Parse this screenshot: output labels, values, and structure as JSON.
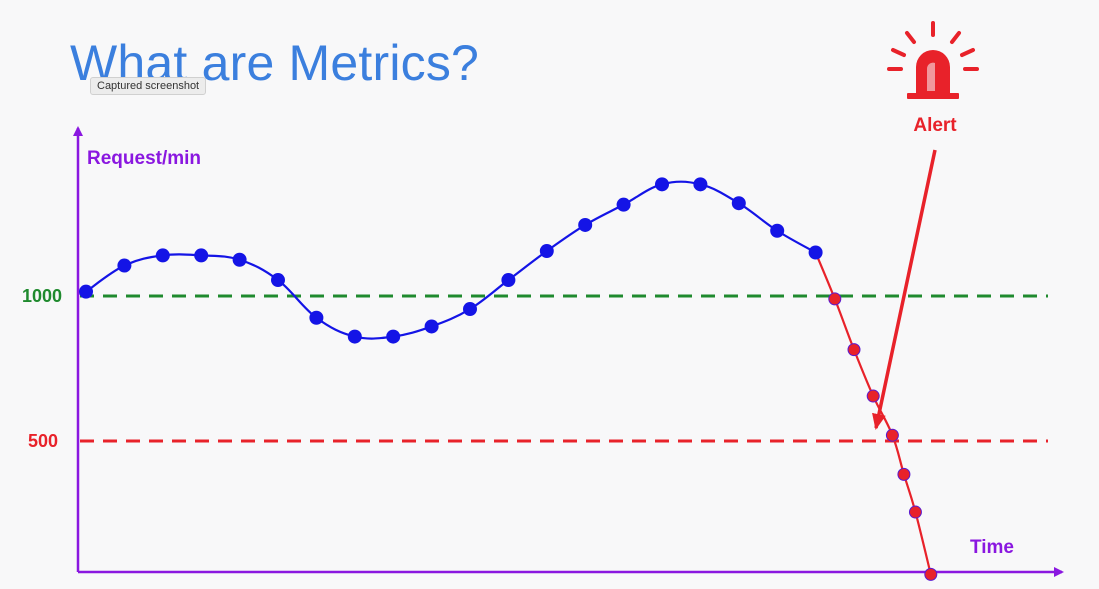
{
  "title": "What are Metrics?",
  "tooltip": "Captured screenshot",
  "alert": {
    "label": "Alert",
    "icon": "alarm-siren-icon",
    "color": "#e8222a"
  },
  "colors": {
    "axis": "#8a17e0",
    "normal_series": "#1414e6",
    "alert_series": "#e8222a",
    "baseline_line": "#1f8a2e",
    "threshold_line": "#e8222a"
  },
  "chart_data": {
    "type": "line",
    "xlabel": "Time",
    "ylabel": "Request/min",
    "ylim": [
      0,
      1900
    ],
    "reference_lines": [
      {
        "value": 1000,
        "label": "1000",
        "color": "#1f8a2e"
      },
      {
        "value": 500,
        "label": "500",
        "color": "#e8222a"
      }
    ],
    "series": [
      {
        "role": "normal",
        "color": "#1414e6",
        "x": [
          0,
          1,
          2,
          3,
          4,
          5,
          6,
          7,
          8,
          9,
          10,
          11,
          12,
          13,
          14,
          15,
          16,
          17,
          18,
          19
        ],
        "values": [
          1015,
          1105,
          1140,
          1140,
          1125,
          1055,
          925,
          860,
          860,
          895,
          955,
          1055,
          1155,
          1245,
          1315,
          1385,
          1385,
          1320,
          1225,
          1150
        ]
      },
      {
        "role": "alert",
        "color": "#e8222a",
        "x": [
          19,
          19.5,
          20,
          20.5,
          21,
          21.3,
          21.6,
          22
        ],
        "values": [
          1150,
          990,
          815,
          655,
          520,
          385,
          255,
          40
        ]
      }
    ]
  }
}
